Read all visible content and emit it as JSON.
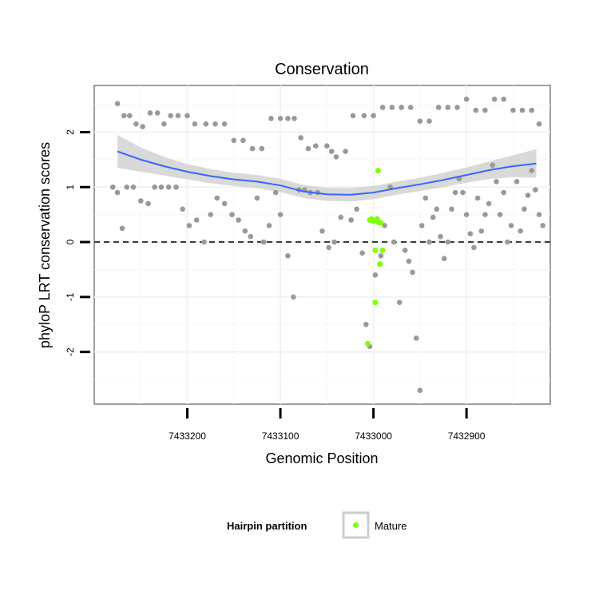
{
  "chart_data": {
    "type": "scatter",
    "title": "Conservation",
    "xlabel": "Genomic Position",
    "ylabel": "phyloP LRT conservation scores",
    "x_reversed": true,
    "xlim": [
      7433300,
      7432810
    ],
    "ylim": [
      -2.95,
      2.85
    ],
    "x_ticks": [
      7433200,
      7433100,
      7433000,
      7432900
    ],
    "y_ticks": [
      2,
      1,
      0,
      -1,
      -2
    ],
    "reference_line": {
      "y": 0,
      "style": "dashed"
    },
    "grid": true,
    "legend": {
      "title": "Hairpin partition",
      "placement": "bottom",
      "entries": [
        {
          "label": "Mature",
          "color": "#7fff00"
        }
      ]
    },
    "colors": {
      "background_points": "#999999",
      "mature": "#7fff00",
      "smooth_line": "#3366ff",
      "ribbon": "#cccccc"
    },
    "background_series": {
      "name": "Other",
      "points": [
        [
          7433275,
          2.52
        ],
        [
          7433268,
          2.3
        ],
        [
          7433262,
          2.3
        ],
        [
          7433255,
          2.15
        ],
        [
          7433248,
          2.1
        ],
        [
          7433240,
          2.35
        ],
        [
          7433232,
          2.35
        ],
        [
          7433225,
          2.15
        ],
        [
          7433218,
          2.3
        ],
        [
          7433210,
          2.3
        ],
        [
          7433200,
          2.3
        ],
        [
          7433192,
          2.15
        ],
        [
          7433180,
          2.15
        ],
        [
          7433170,
          2.15
        ],
        [
          7433160,
          2.15
        ],
        [
          7433150,
          1.85
        ],
        [
          7433140,
          1.85
        ],
        [
          7433130,
          1.7
        ],
        [
          7433120,
          1.7
        ],
        [
          7433110,
          2.25
        ],
        [
          7433100,
          2.25
        ],
        [
          7433092,
          2.25
        ],
        [
          7433085,
          2.25
        ],
        [
          7433078,
          1.9
        ],
        [
          7433070,
          1.7
        ],
        [
          7433062,
          1.75
        ],
        [
          7433050,
          1.75
        ],
        [
          7433045,
          1.65
        ],
        [
          7433040,
          1.55
        ],
        [
          7433022,
          2.3
        ],
        [
          7433010,
          2.3
        ],
        [
          7433000,
          2.3
        ],
        [
          7432990,
          2.45
        ],
        [
          7432980,
          2.45
        ],
        [
          7432970,
          2.45
        ],
        [
          7432960,
          2.45
        ],
        [
          7432950,
          2.2
        ],
        [
          7432940,
          2.2
        ],
        [
          7432930,
          2.45
        ],
        [
          7432920,
          2.45
        ],
        [
          7432910,
          2.45
        ],
        [
          7432900,
          2.6
        ],
        [
          7432890,
          2.4
        ],
        [
          7432880,
          2.4
        ],
        [
          7432870,
          2.6
        ],
        [
          7432860,
          2.6
        ],
        [
          7432850,
          2.4
        ],
        [
          7432840,
          2.4
        ],
        [
          7432830,
          2.4
        ],
        [
          7432822,
          2.15
        ],
        [
          7433280,
          1.0
        ],
        [
          7433275,
          0.9
        ],
        [
          7433270,
          0.25
        ],
        [
          7433265,
          1.0
        ],
        [
          7433258,
          1.0
        ],
        [
          7433250,
          0.75
        ],
        [
          7433242,
          0.7
        ],
        [
          7433235,
          1.0
        ],
        [
          7433228,
          1.0
        ],
        [
          7433220,
          1.0
        ],
        [
          7433212,
          1.0
        ],
        [
          7433205,
          0.6
        ],
        [
          7433198,
          0.3
        ],
        [
          7433190,
          0.4
        ],
        [
          7433182,
          0.0
        ],
        [
          7433175,
          0.5
        ],
        [
          7433168,
          0.8
        ],
        [
          7433160,
          0.7
        ],
        [
          7433152,
          0.5
        ],
        [
          7433145,
          0.4
        ],
        [
          7433138,
          0.2
        ],
        [
          7433132,
          0.1
        ],
        [
          7433125,
          0.8
        ],
        [
          7433118,
          0.0
        ],
        [
          7433112,
          0.3
        ],
        [
          7433105,
          0.9
        ],
        [
          7433100,
          0.5
        ],
        [
          7433092,
          -0.25
        ],
        [
          7433086,
          -1.0
        ],
        [
          7433080,
          0.95
        ],
        [
          7433074,
          0.95
        ],
        [
          7433068,
          0.9
        ],
        [
          7433060,
          0.9
        ],
        [
          7433055,
          0.2
        ],
        [
          7433048,
          -0.1
        ],
        [
          7433042,
          0.0
        ],
        [
          7433035,
          0.45
        ],
        [
          7433030,
          1.65
        ],
        [
          7433024,
          0.4
        ],
        [
          7433018,
          0.6
        ],
        [
          7433012,
          -0.2
        ],
        [
          7433008,
          -1.5
        ],
        [
          7433004,
          -1.9
        ],
        [
          7432998,
          -0.6
        ],
        [
          7432992,
          -0.25
        ],
        [
          7432988,
          0.3
        ],
        [
          7432982,
          1.0
        ],
        [
          7432978,
          0.0
        ],
        [
          7432972,
          -1.1
        ],
        [
          7432966,
          -0.15
        ],
        [
          7432962,
          -0.35
        ],
        [
          7432958,
          -0.55
        ],
        [
          7432954,
          -1.75
        ],
        [
          7432950,
          -2.7
        ],
        [
          7432948,
          0.3
        ],
        [
          7432944,
          0.8
        ],
        [
          7432940,
          0.0
        ],
        [
          7432936,
          0.45
        ],
        [
          7432932,
          0.6
        ],
        [
          7432928,
          0.1
        ],
        [
          7432924,
          -0.3
        ],
        [
          7432920,
          0.0
        ],
        [
          7432916,
          0.6
        ],
        [
          7432912,
          0.9
        ],
        [
          7432908,
          1.15
        ],
        [
          7432904,
          0.9
        ],
        [
          7432900,
          0.5
        ],
        [
          7432896,
          0.15
        ],
        [
          7432892,
          -0.1
        ],
        [
          7432888,
          0.8
        ],
        [
          7432884,
          0.2
        ],
        [
          7432880,
          0.5
        ],
        [
          7432876,
          0.7
        ],
        [
          7432872,
          1.4
        ],
        [
          7432868,
          1.1
        ],
        [
          7432864,
          0.5
        ],
        [
          7432860,
          0.9
        ],
        [
          7432856,
          0.0
        ],
        [
          7432852,
          0.3
        ],
        [
          7432846,
          1.1
        ],
        [
          7432842,
          0.2
        ],
        [
          7432838,
          0.6
        ],
        [
          7432834,
          0.85
        ],
        [
          7432830,
          1.3
        ],
        [
          7432826,
          0.95
        ],
        [
          7432822,
          0.5
        ],
        [
          7432818,
          0.3
        ]
      ]
    },
    "series": [
      {
        "name": "Mature",
        "points": [
          [
            7433006,
            -1.85
          ],
          [
            7433004,
            0.4
          ],
          [
            7433002,
            0.42
          ],
          [
            7433000,
            0.38
          ],
          [
            7432998,
            -1.1
          ],
          [
            7432998,
            -0.15
          ],
          [
            7432996,
            0.42
          ],
          [
            7432995,
            1.3
          ],
          [
            7432994,
            0.35
          ],
          [
            7432993,
            -0.4
          ],
          [
            7432992,
            0.35
          ],
          [
            7432990,
            -0.15
          ]
        ]
      },
      {
        "name": "LOESS smooth",
        "points": [
          [
            7433275,
            1.65
          ],
          [
            7433250,
            1.5
          ],
          [
            7433225,
            1.38
          ],
          [
            7433200,
            1.28
          ],
          [
            7433175,
            1.2
          ],
          [
            7433150,
            1.14
          ],
          [
            7433125,
            1.1
          ],
          [
            7433100,
            1.03
          ],
          [
            7433075,
            0.92
          ],
          [
            7433050,
            0.87
          ],
          [
            7433025,
            0.86
          ],
          [
            7433000,
            0.9
          ],
          [
            7432975,
            0.98
          ],
          [
            7432950,
            1.05
          ],
          [
            7432925,
            1.13
          ],
          [
            7432900,
            1.22
          ],
          [
            7432875,
            1.31
          ],
          [
            7432850,
            1.38
          ],
          [
            7432825,
            1.43
          ]
        ]
      }
    ],
    "ribbon_halfwidth": [
      0.3,
      0.22,
      0.17,
      0.14,
      0.13,
      0.12,
      0.12,
      0.12,
      0.12,
      0.12,
      0.12,
      0.12,
      0.12,
      0.12,
      0.13,
      0.14,
      0.16,
      0.2,
      0.26
    ]
  }
}
